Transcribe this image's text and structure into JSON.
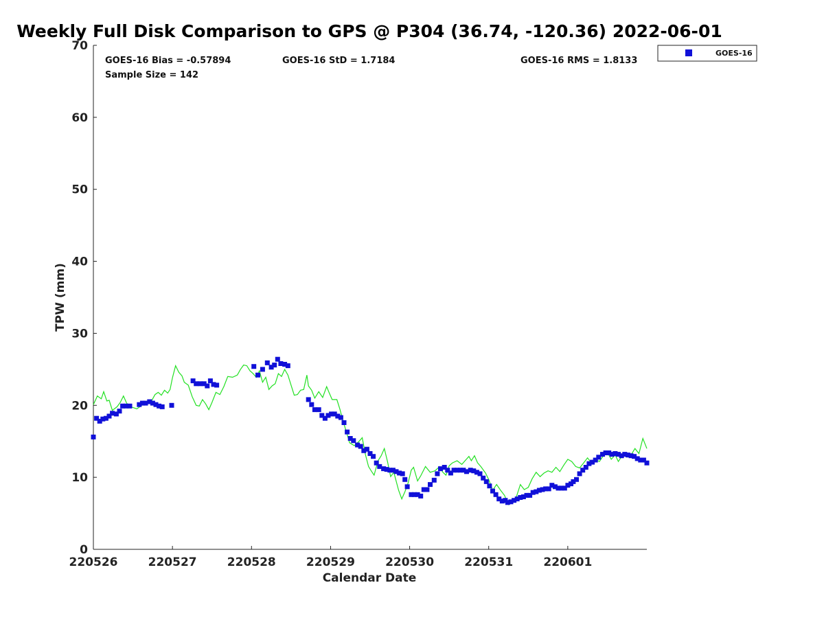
{
  "chart_data": {
    "type": "scatter",
    "title": "Weekly Full Disk Comparison to GPS @ P304 (36.74, -120.36) 2022-06-01",
    "xlabel": "Calendar Date",
    "ylabel": "TPW (mm)",
    "xlim": [
      0,
      7
    ],
    "ylim": [
      0,
      70
    ],
    "x_ticks": [
      {
        "value": 0,
        "label": "220526"
      },
      {
        "value": 1,
        "label": "220527"
      },
      {
        "value": 2,
        "label": "220528"
      },
      {
        "value": 3,
        "label": "220529"
      },
      {
        "value": 4,
        "label": "220530"
      },
      {
        "value": 5,
        "label": "220531"
      },
      {
        "value": 6,
        "label": "220601"
      }
    ],
    "y_ticks": [
      0,
      10,
      20,
      30,
      40,
      50,
      60,
      70
    ],
    "grid": false,
    "legend": {
      "position": "top-right outside",
      "entries": [
        "GOES-16"
      ]
    },
    "stats": {
      "bias": "GOES-16 Bias = -0.57894",
      "std": "GOES-16 StD = 1.7184",
      "rms": "GOES-16 RMS = 1.8133",
      "sample": "Sample Size = 142"
    },
    "series": [
      {
        "name": "GOES-16",
        "kind": "markers",
        "color": "#1010d8",
        "points": [
          [
            0.0,
            15.6
          ],
          [
            0.04,
            18.2
          ],
          [
            0.08,
            17.8
          ],
          [
            0.12,
            18.1
          ],
          [
            0.16,
            18.2
          ],
          [
            0.2,
            18.5
          ],
          [
            0.24,
            18.9
          ],
          [
            0.29,
            18.8
          ],
          [
            0.33,
            19.2
          ],
          [
            0.37,
            19.9
          ],
          [
            0.41,
            19.9
          ],
          [
            0.46,
            19.9
          ],
          [
            0.58,
            20.1
          ],
          [
            0.62,
            20.3
          ],
          [
            0.66,
            20.3
          ],
          [
            0.71,
            20.5
          ],
          [
            0.75,
            20.3
          ],
          [
            0.79,
            20.1
          ],
          [
            0.83,
            19.9
          ],
          [
            0.87,
            19.8
          ],
          [
            0.99,
            20.0
          ],
          [
            1.26,
            23.4
          ],
          [
            1.3,
            23.0
          ],
          [
            1.35,
            23.0
          ],
          [
            1.4,
            23.0
          ],
          [
            1.44,
            22.7
          ],
          [
            1.48,
            23.4
          ],
          [
            1.52,
            22.9
          ],
          [
            1.56,
            22.8
          ],
          [
            2.03,
            25.4
          ],
          [
            2.08,
            24.2
          ],
          [
            2.14,
            25.0
          ],
          [
            2.2,
            25.9
          ],
          [
            2.25,
            25.3
          ],
          [
            2.29,
            25.6
          ],
          [
            2.33,
            26.4
          ],
          [
            2.37,
            25.8
          ],
          [
            2.42,
            25.7
          ],
          [
            2.46,
            25.5
          ],
          [
            2.72,
            20.8
          ],
          [
            2.76,
            20.1
          ],
          [
            2.8,
            19.4
          ],
          [
            2.85,
            19.4
          ],
          [
            2.89,
            18.6
          ],
          [
            2.93,
            18.2
          ],
          [
            2.97,
            18.6
          ],
          [
            3.01,
            18.8
          ],
          [
            3.05,
            18.8
          ],
          [
            3.09,
            18.5
          ],
          [
            3.13,
            18.3
          ],
          [
            3.17,
            17.6
          ],
          [
            3.21,
            16.3
          ],
          [
            3.25,
            15.4
          ],
          [
            3.29,
            15.1
          ],
          [
            3.34,
            14.5
          ],
          [
            3.38,
            14.3
          ],
          [
            3.42,
            13.7
          ],
          [
            3.46,
            13.9
          ],
          [
            3.5,
            13.3
          ],
          [
            3.54,
            12.9
          ],
          [
            3.58,
            12.0
          ],
          [
            3.62,
            11.5
          ],
          [
            3.67,
            11.2
          ],
          [
            3.71,
            11.1
          ],
          [
            3.75,
            11.0
          ],
          [
            3.79,
            11.0
          ],
          [
            3.83,
            10.8
          ],
          [
            3.87,
            10.6
          ],
          [
            3.91,
            10.5
          ],
          [
            3.94,
            9.7
          ],
          [
            3.97,
            8.7
          ],
          [
            4.02,
            7.6
          ],
          [
            4.06,
            7.6
          ],
          [
            4.1,
            7.6
          ],
          [
            4.14,
            7.4
          ],
          [
            4.18,
            8.3
          ],
          [
            4.22,
            8.3
          ],
          [
            4.26,
            9.0
          ],
          [
            4.31,
            9.6
          ],
          [
            4.35,
            10.5
          ],
          [
            4.39,
            11.2
          ],
          [
            4.44,
            11.4
          ],
          [
            4.48,
            11.0
          ],
          [
            4.52,
            10.6
          ],
          [
            4.56,
            11.0
          ],
          [
            4.6,
            11.0
          ],
          [
            4.64,
            11.0
          ],
          [
            4.68,
            11.0
          ],
          [
            4.72,
            10.8
          ],
          [
            4.77,
            11.0
          ],
          [
            4.81,
            10.9
          ],
          [
            4.85,
            10.7
          ],
          [
            4.89,
            10.5
          ],
          [
            4.93,
            9.9
          ],
          [
            4.97,
            9.4
          ],
          [
            5.01,
            8.8
          ],
          [
            5.05,
            8.1
          ],
          [
            5.09,
            7.6
          ],
          [
            5.13,
            7.0
          ],
          [
            5.17,
            6.7
          ],
          [
            5.21,
            6.8
          ],
          [
            5.24,
            6.5
          ],
          [
            5.28,
            6.6
          ],
          [
            5.32,
            6.8
          ],
          [
            5.36,
            7.0
          ],
          [
            5.4,
            7.2
          ],
          [
            5.44,
            7.3
          ],
          [
            5.48,
            7.5
          ],
          [
            5.52,
            7.5
          ],
          [
            5.56,
            7.9
          ],
          [
            5.6,
            8.0
          ],
          [
            5.64,
            8.2
          ],
          [
            5.68,
            8.3
          ],
          [
            5.72,
            8.4
          ],
          [
            5.76,
            8.4
          ],
          [
            5.8,
            8.9
          ],
          [
            5.84,
            8.7
          ],
          [
            5.88,
            8.5
          ],
          [
            5.92,
            8.5
          ],
          [
            5.96,
            8.5
          ],
          [
            6.0,
            8.9
          ],
          [
            6.04,
            9.1
          ],
          [
            6.07,
            9.4
          ],
          [
            6.11,
            9.7
          ],
          [
            6.15,
            10.5
          ],
          [
            6.19,
            11.0
          ],
          [
            6.23,
            11.4
          ],
          [
            6.27,
            11.9
          ],
          [
            6.31,
            12.1
          ],
          [
            6.35,
            12.4
          ],
          [
            6.39,
            12.8
          ],
          [
            6.44,
            13.2
          ],
          [
            6.48,
            13.4
          ],
          [
            6.52,
            13.4
          ],
          [
            6.56,
            13.2
          ],
          [
            6.6,
            13.3
          ],
          [
            6.64,
            13.2
          ],
          [
            6.68,
            13.0
          ],
          [
            6.72,
            13.2
          ],
          [
            6.76,
            13.1
          ],
          [
            6.8,
            13.0
          ],
          [
            6.84,
            12.9
          ],
          [
            6.88,
            12.6
          ],
          [
            6.92,
            12.4
          ],
          [
            6.96,
            12.4
          ],
          [
            7.0,
            12.0
          ]
        ]
      },
      {
        "kind": "line",
        "color": "#22e022",
        "points": [
          [
            0.0,
            20.1
          ],
          [
            0.05,
            21.3
          ],
          [
            0.1,
            20.9
          ],
          [
            0.13,
            21.9
          ],
          [
            0.17,
            20.6
          ],
          [
            0.2,
            20.7
          ],
          [
            0.24,
            19.3
          ],
          [
            0.3,
            19.8
          ],
          [
            0.34,
            20.4
          ],
          [
            0.38,
            21.3
          ],
          [
            0.42,
            20.3
          ],
          [
            0.46,
            19.8
          ],
          [
            0.5,
            19.7
          ],
          [
            0.55,
            19.5
          ],
          [
            0.6,
            19.9
          ],
          [
            0.66,
            20.4
          ],
          [
            0.72,
            20.3
          ],
          [
            0.78,
            21.5
          ],
          [
            0.82,
            21.8
          ],
          [
            0.86,
            21.4
          ],
          [
            0.9,
            22.1
          ],
          [
            0.94,
            21.7
          ],
          [
            0.97,
            22.2
          ],
          [
            1.0,
            23.8
          ],
          [
            1.04,
            25.5
          ],
          [
            1.08,
            24.6
          ],
          [
            1.12,
            24.1
          ],
          [
            1.15,
            23.2
          ],
          [
            1.2,
            22.8
          ],
          [
            1.25,
            21.2
          ],
          [
            1.3,
            20.0
          ],
          [
            1.34,
            19.9
          ],
          [
            1.38,
            20.8
          ],
          [
            1.42,
            20.2
          ],
          [
            1.46,
            19.4
          ],
          [
            1.5,
            20.4
          ],
          [
            1.55,
            21.8
          ],
          [
            1.6,
            21.5
          ],
          [
            1.65,
            22.6
          ],
          [
            1.7,
            24.0
          ],
          [
            1.76,
            23.9
          ],
          [
            1.82,
            24.2
          ],
          [
            1.86,
            25.0
          ],
          [
            1.9,
            25.6
          ],
          [
            1.94,
            25.5
          ],
          [
            1.98,
            24.8
          ],
          [
            2.02,
            24.4
          ],
          [
            2.06,
            23.9
          ],
          [
            2.1,
            24.8
          ],
          [
            2.14,
            23.2
          ],
          [
            2.18,
            23.9
          ],
          [
            2.22,
            22.2
          ],
          [
            2.26,
            22.7
          ],
          [
            2.3,
            23.0
          ],
          [
            2.34,
            24.4
          ],
          [
            2.38,
            24.0
          ],
          [
            2.42,
            25.0
          ],
          [
            2.46,
            24.2
          ],
          [
            2.5,
            22.8
          ],
          [
            2.54,
            21.4
          ],
          [
            2.58,
            21.5
          ],
          [
            2.62,
            22.1
          ],
          [
            2.66,
            22.2
          ],
          [
            2.7,
            24.2
          ],
          [
            2.72,
            22.7
          ],
          [
            2.76,
            22.1
          ],
          [
            2.8,
            21.0
          ],
          [
            2.85,
            21.9
          ],
          [
            2.9,
            21.1
          ],
          [
            2.95,
            22.6
          ],
          [
            2.98,
            21.8
          ],
          [
            3.02,
            20.8
          ],
          [
            3.08,
            20.8
          ],
          [
            3.12,
            19.4
          ],
          [
            3.16,
            17.7
          ],
          [
            3.2,
            16.3
          ],
          [
            3.24,
            14.8
          ],
          [
            3.3,
            14.4
          ],
          [
            3.36,
            15.0
          ],
          [
            3.4,
            15.5
          ],
          [
            3.44,
            13.2
          ],
          [
            3.48,
            11.5
          ],
          [
            3.52,
            10.8
          ],
          [
            3.55,
            10.3
          ],
          [
            3.6,
            12.3
          ],
          [
            3.64,
            13.0
          ],
          [
            3.68,
            14.0
          ],
          [
            3.72,
            12.2
          ],
          [
            3.76,
            10.1
          ],
          [
            3.8,
            10.7
          ],
          [
            3.86,
            8.2
          ],
          [
            3.9,
            7.0
          ],
          [
            3.94,
            8.0
          ],
          [
            3.98,
            9.2
          ],
          [
            4.02,
            11.0
          ],
          [
            4.05,
            11.4
          ],
          [
            4.1,
            9.5
          ],
          [
            4.14,
            10.2
          ],
          [
            4.2,
            11.5
          ],
          [
            4.26,
            10.7
          ],
          [
            4.32,
            10.9
          ],
          [
            4.38,
            11.5
          ],
          [
            4.42,
            10.7
          ],
          [
            4.46,
            10.3
          ],
          [
            4.5,
            11.6
          ],
          [
            4.54,
            12.0
          ],
          [
            4.6,
            12.3
          ],
          [
            4.66,
            11.8
          ],
          [
            4.7,
            12.3
          ],
          [
            4.75,
            12.9
          ],
          [
            4.78,
            12.3
          ],
          [
            4.82,
            13.0
          ],
          [
            4.86,
            12.0
          ],
          [
            4.9,
            11.5
          ],
          [
            4.96,
            10.6
          ],
          [
            5.0,
            9.7
          ],
          [
            5.05,
            8.2
          ],
          [
            5.1,
            9.0
          ],
          [
            5.15,
            8.2
          ],
          [
            5.2,
            7.5
          ],
          [
            5.25,
            6.2
          ],
          [
            5.3,
            6.6
          ],
          [
            5.35,
            7.3
          ],
          [
            5.4,
            9.0
          ],
          [
            5.45,
            8.3
          ],
          [
            5.5,
            8.6
          ],
          [
            5.55,
            9.8
          ],
          [
            5.6,
            10.7
          ],
          [
            5.65,
            10.1
          ],
          [
            5.7,
            10.6
          ],
          [
            5.75,
            10.9
          ],
          [
            5.8,
            10.7
          ],
          [
            5.85,
            11.4
          ],
          [
            5.9,
            10.8
          ],
          [
            5.95,
            11.7
          ],
          [
            6.0,
            12.5
          ],
          [
            6.05,
            12.2
          ],
          [
            6.1,
            11.5
          ],
          [
            6.15,
            11.3
          ],
          [
            6.2,
            12.0
          ],
          [
            6.25,
            12.7
          ],
          [
            6.3,
            12.0
          ],
          [
            6.35,
            12.5
          ],
          [
            6.4,
            12.2
          ],
          [
            6.45,
            13.0
          ],
          [
            6.5,
            13.5
          ],
          [
            6.55,
            12.5
          ],
          [
            6.6,
            13.1
          ],
          [
            6.64,
            12.2
          ],
          [
            6.7,
            13.2
          ],
          [
            6.75,
            12.8
          ],
          [
            6.8,
            13.1
          ],
          [
            6.85,
            14.0
          ],
          [
            6.9,
            13.3
          ],
          [
            6.95,
            15.4
          ],
          [
            7.0,
            14.0
          ]
        ]
      }
    ]
  }
}
